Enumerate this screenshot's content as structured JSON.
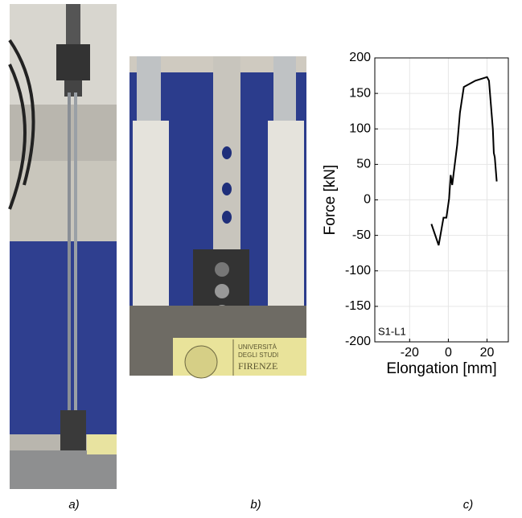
{
  "captions": [
    "a)",
    "b)",
    "c)"
  ],
  "photo_b": {
    "label_lines": [
      "UNIVERSITÀ",
      "DEGLI STUDI",
      "FIRENZE"
    ]
  },
  "chart_data": {
    "type": "line",
    "ylabel": "Force [kN]",
    "xlabel": "Elongation [mm]",
    "annotation": "S1-L1",
    "x": [
      -8.75,
      -5,
      -2.5,
      -1,
      0.4,
      1.2,
      2,
      4.6,
      6,
      8,
      14,
      20,
      21,
      23,
      23.5,
      24,
      25
    ],
    "values": [
      -34,
      -64,
      -25,
      -25,
      2,
      35,
      21,
      78,
      123,
      159,
      168,
      173,
      168,
      100,
      66,
      60,
      26
    ],
    "color": "#000000",
    "xlim": [
      -38,
      31
    ],
    "xticks": [
      -20,
      0,
      20
    ],
    "ylim": [
      -200,
      200
    ],
    "yticks": [
      -200,
      -150,
      -100,
      -50,
      0,
      50,
      100,
      150,
      200
    ],
    "grid": true
  }
}
